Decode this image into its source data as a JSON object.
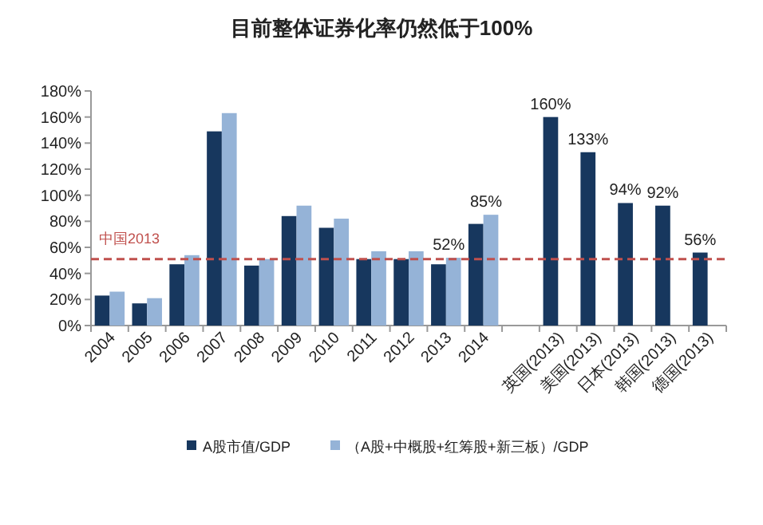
{
  "chart_data": {
    "type": "bar",
    "title": "目前整体证券化率仍然低于100%",
    "categories": [
      "2004",
      "2005",
      "2006",
      "2007",
      "2008",
      "2009",
      "2010",
      "2011",
      "2012",
      "2013",
      "2014",
      null,
      "英国(2013)",
      "美国(2013)",
      "日本(2013)",
      "韩国(2013)",
      "德国(2013)"
    ],
    "series": [
      {
        "name": "A股市值/GDP",
        "color": "#17375e",
        "values": [
          23,
          17,
          47,
          149,
          46,
          84,
          75,
          51,
          51,
          47,
          78,
          null,
          160,
          133,
          94,
          92,
          56
        ],
        "value_labels": [
          null,
          null,
          null,
          null,
          null,
          null,
          null,
          null,
          null,
          null,
          null,
          null,
          "160%",
          "133%",
          "94%",
          "92%",
          "56%"
        ]
      },
      {
        "name": "（A股+中概股+红筹股+新三板）/GDP",
        "color": "#95b3d7",
        "values": [
          26,
          21,
          54,
          163,
          51,
          92,
          82,
          57,
          57,
          52,
          85,
          null,
          null,
          null,
          null,
          null,
          null
        ],
        "value_labels": [
          null,
          null,
          null,
          null,
          null,
          null,
          null,
          null,
          null,
          "52%",
          "85%",
          null,
          null,
          null,
          null,
          null,
          null
        ]
      }
    ],
    "ylim": [
      0,
      180
    ],
    "yticks": [
      {
        "value": 0,
        "label": "0%"
      },
      {
        "value": 20,
        "label": "20%"
      },
      {
        "value": 40,
        "label": "40%"
      },
      {
        "value": 60,
        "label": "60%"
      },
      {
        "value": 80,
        "label": "80%"
      },
      {
        "value": 100,
        "label": "100%"
      },
      {
        "value": 120,
        "label": "120%"
      },
      {
        "value": 140,
        "label": "140%"
      },
      {
        "value": 160,
        "label": "160%"
      },
      {
        "value": 180,
        "label": "180%"
      }
    ],
    "ref_lines": [
      {
        "axis": "y",
        "value": 51,
        "label": "中国2013",
        "color": "#c0504d",
        "line_style": "dashed"
      }
    ],
    "legend": "bottom",
    "grid": false
  }
}
